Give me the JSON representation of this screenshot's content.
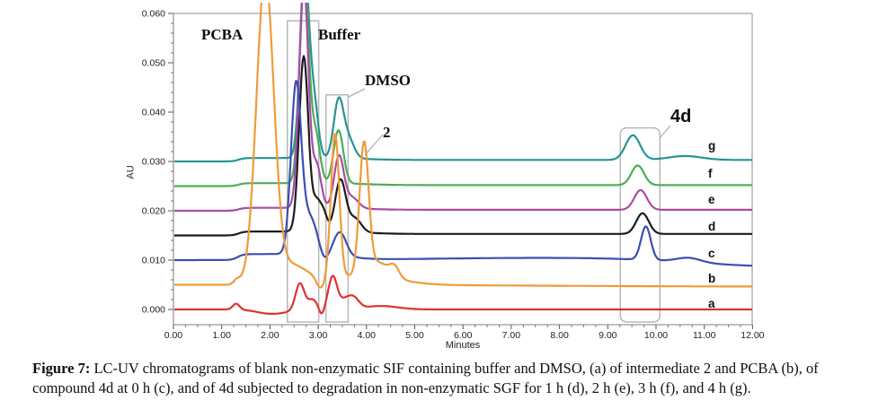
{
  "caption": {
    "prefix": "Figure 7:",
    "text": " LC-UV chromatograms of blank non-enzymatic SIF containing buffer and DMSO, (a) of intermediate 2 and PCBA (b), of compound 4d at 0 h (c), and of 4d subjected to degradation in non-enzymatic SGF for 1 h (d), 2 h (e), 3 h (f), and 4 h (g)."
  },
  "chart_data": {
    "type": "line",
    "title": "",
    "xlabel": "Minutes",
    "ylabel": "AU",
    "xlim": [
      0,
      12
    ],
    "ylim": [
      -0.003,
      0.06
    ],
    "grid": false,
    "x_major_ticks": [
      "0.00",
      "1.00",
      "2.00",
      "3.00",
      "4.00",
      "5.00",
      "6.00",
      "7.00",
      "8.00",
      "9.00",
      "10.00",
      "11.00",
      "12.00"
    ],
    "x_minor_step": 0.25,
    "y_major_ticks": [
      "0.000",
      "0.010",
      "0.020",
      "0.030",
      "0.040",
      "0.050",
      "0.060"
    ],
    "y_minor_step": 0.002,
    "annotations": [
      {
        "text": "PCBA",
        "points_to": "PCBA peak of trace b at 1.9 min (off-scale)",
        "line": null
      },
      {
        "text": "Buffer",
        "points_to": "buffer peak cluster 2.4-3.0 min",
        "line": null
      },
      {
        "text": "DMSO",
        "points_to": "DMSO peak ~3.4 min",
        "line": [
          406,
          99,
          388,
          108
        ]
      },
      {
        "text": "2",
        "points_to": "intermediate 2 peak of trace b at 3.95 min",
        "line": [
          426,
          150,
          406,
          173
        ]
      },
      {
        "text": "4d",
        "points_to": "compound 4d peak ~9.5-10 min",
        "line": [
          746,
          140,
          734,
          154
        ]
      }
    ],
    "regions": [
      {
        "name": "buffer-box",
        "t0": 2.36,
        "t1": 3.01,
        "top_au": 0.0585,
        "rounded": false
      },
      {
        "name": "dmso-box",
        "t0": 3.16,
        "t1": 3.62,
        "top_au": 0.0435,
        "rounded": false
      },
      {
        "name": "4d-box",
        "t0": 9.26,
        "t1": 10.08,
        "top_au": 0.0368,
        "rounded": true
      }
    ],
    "series": [
      {
        "name": "g",
        "label": "g",
        "description": "4d degraded 4 h in non-enzymatic SGF",
        "color": "#269494",
        "baseline": 0.03,
        "features": [
          {
            "type": "step",
            "t": 1.35,
            "h": 0.0007,
            "w": 0.06
          },
          {
            "type": "gauss",
            "t": 2.72,
            "h": 0.037,
            "w": 0.095
          },
          {
            "type": "gauss",
            "t": 2.92,
            "h": 0.01,
            "w": 0.085
          },
          {
            "type": "gauss",
            "t": 3.42,
            "h": 0.0113,
            "w": 0.1
          },
          {
            "type": "gauss",
            "t": 3.62,
            "h": 0.004,
            "w": 0.12
          },
          {
            "type": "step",
            "t": 4.0,
            "h": -0.0004,
            "w": 0.3
          },
          {
            "type": "gauss",
            "t": 9.52,
            "h": 0.005,
            "w": 0.15
          },
          {
            "type": "gauss",
            "t": 10.6,
            "h": 0.0008,
            "w": 0.35
          }
        ]
      },
      {
        "name": "f",
        "label": "f",
        "description": "4d degraded 3 h in non-enzymatic SGF",
        "color": "#4cae54",
        "baseline": 0.025,
        "features": [
          {
            "type": "step",
            "t": 1.35,
            "h": 0.0006,
            "w": 0.06
          },
          {
            "type": "gauss",
            "t": 2.71,
            "h": 0.042,
            "w": 0.095
          },
          {
            "type": "gauss",
            "t": 2.95,
            "h": 0.0095,
            "w": 0.09
          },
          {
            "type": "gauss",
            "t": 3.42,
            "h": 0.0108,
            "w": 0.1
          },
          {
            "type": "step",
            "t": 4.0,
            "h": -0.0004,
            "w": 0.3
          },
          {
            "type": "gauss",
            "t": 9.62,
            "h": 0.004,
            "w": 0.13
          }
        ]
      },
      {
        "name": "e",
        "label": "e",
        "description": "4d degraded 2 h in non-enzymatic SGF",
        "color": "#aa4aaa",
        "baseline": 0.02,
        "features": [
          {
            "type": "step",
            "t": 1.35,
            "h": 0.0006,
            "w": 0.06
          },
          {
            "type": "gauss",
            "t": 2.7,
            "h": 0.046,
            "w": 0.095
          },
          {
            "type": "gauss",
            "t": 2.97,
            "h": 0.0085,
            "w": 0.09
          },
          {
            "type": "gauss",
            "t": 3.43,
            "h": 0.0105,
            "w": 0.1
          },
          {
            "type": "gauss",
            "t": 3.7,
            "h": 0.0022,
            "w": 0.13
          },
          {
            "type": "step",
            "t": 4.0,
            "h": -0.0004,
            "w": 0.3
          },
          {
            "type": "gauss",
            "t": 9.68,
            "h": 0.004,
            "w": 0.13
          }
        ]
      },
      {
        "name": "d",
        "label": "d",
        "description": "4d degraded 1 h in non-enzymatic SGF",
        "color": "#1c1c1c",
        "baseline": 0.015,
        "features": [
          {
            "type": "step",
            "t": 1.35,
            "h": 0.0008,
            "w": 0.06
          },
          {
            "type": "gauss",
            "t": 2.7,
            "h": 0.0355,
            "w": 0.095
          },
          {
            "type": "gauss",
            "t": 2.97,
            "h": 0.006,
            "w": 0.09
          },
          {
            "type": "gauss",
            "t": 3.12,
            "h": 0.003,
            "w": 0.07
          },
          {
            "type": "gauss",
            "t": 3.46,
            "h": 0.0105,
            "w": 0.11
          },
          {
            "type": "gauss",
            "t": 3.76,
            "h": 0.0028,
            "w": 0.13
          },
          {
            "type": "step",
            "t": 4.0,
            "h": -0.0005,
            "w": 0.3
          },
          {
            "type": "gauss",
            "t": 9.72,
            "h": 0.0042,
            "w": 0.13
          }
        ]
      },
      {
        "name": "c",
        "label": "c",
        "description": "compound 4d at 0 h",
        "color": "#3950b2",
        "baseline": 0.01,
        "features": [
          {
            "type": "step",
            "t": 1.33,
            "h": 0.0012,
            "w": 0.06
          },
          {
            "type": "gauss",
            "t": 2.54,
            "h": 0.0335,
            "w": 0.105
          },
          {
            "type": "gauss",
            "t": 2.82,
            "h": 0.0075,
            "w": 0.16
          },
          {
            "type": "gauss",
            "t": 3.12,
            "h": -0.0018,
            "w": 0.09
          },
          {
            "type": "gauss",
            "t": 3.45,
            "h": 0.0048,
            "w": 0.13
          },
          {
            "type": "step",
            "t": 3.6,
            "h": -0.0012,
            "w": 0.25
          },
          {
            "type": "step",
            "t": 5.5,
            "h": 0.0006,
            "w": 1.2
          },
          {
            "type": "gauss",
            "t": 9.79,
            "h": 0.0068,
            "w": 0.1
          },
          {
            "type": "gauss",
            "t": 10.68,
            "h": 0.0009,
            "w": 0.25
          },
          {
            "type": "step",
            "t": 10.8,
            "h": -0.0022,
            "w": 0.9
          }
        ]
      },
      {
        "name": "a",
        "label": "a",
        "description": "blank non-enzymatic SIF with buffer and DMSO",
        "color": "#e0312e",
        "baseline": 0.0,
        "features": [
          {
            "type": "gauss",
            "t": 1.3,
            "h": 0.0012,
            "w": 0.07
          },
          {
            "type": "gauss",
            "t": 2.05,
            "h": -0.0009,
            "w": 0.3
          },
          {
            "type": "gauss",
            "t": 2.62,
            "h": 0.0054,
            "w": 0.09
          },
          {
            "type": "gauss",
            "t": 2.88,
            "h": 0.002,
            "w": 0.1
          },
          {
            "type": "gauss",
            "t": 3.07,
            "h": -0.0014,
            "w": 0.05
          },
          {
            "type": "gauss",
            "t": 3.3,
            "h": 0.0066,
            "w": 0.09
          },
          {
            "type": "gauss",
            "t": 3.55,
            "h": 0.0018,
            "w": 0.12
          },
          {
            "type": "gauss",
            "t": 3.74,
            "h": 0.002,
            "w": 0.11
          },
          {
            "type": "gauss",
            "t": 4.3,
            "h": 0.0007,
            "w": 0.35
          }
        ]
      },
      {
        "name": "b",
        "label": "b",
        "description": "intermediate 2 and PCBA",
        "color": "#f09a3a",
        "baseline": 0.005,
        "features": [
          {
            "type": "gauss",
            "t": 1.32,
            "h": 0.001,
            "w": 0.07
          },
          {
            "type": "gauss",
            "t": 1.9,
            "h": 0.062,
            "w": 0.18
          },
          {
            "type": "step",
            "t": 2.1,
            "h": 0.0018,
            "w": 0.2
          },
          {
            "type": "gauss",
            "t": 2.45,
            "h": 0.0025,
            "w": 0.25
          },
          {
            "type": "gauss",
            "t": 3.05,
            "h": -0.0025,
            "w": 0.09
          },
          {
            "type": "gauss",
            "t": 3.35,
            "h": 0.029,
            "w": 0.085
          },
          {
            "type": "gauss",
            "t": 3.95,
            "h": 0.0265,
            "w": 0.095
          },
          {
            "type": "gauss",
            "t": 4.25,
            "h": 0.003,
            "w": 0.2
          },
          {
            "type": "gauss",
            "t": 4.58,
            "h": 0.0022,
            "w": 0.1
          },
          {
            "type": "step",
            "t": 4.8,
            "h": -0.0018,
            "w": 0.3
          },
          {
            "type": "step",
            "t": 8.0,
            "h": -0.0004,
            "w": 2.0
          }
        ]
      }
    ]
  }
}
